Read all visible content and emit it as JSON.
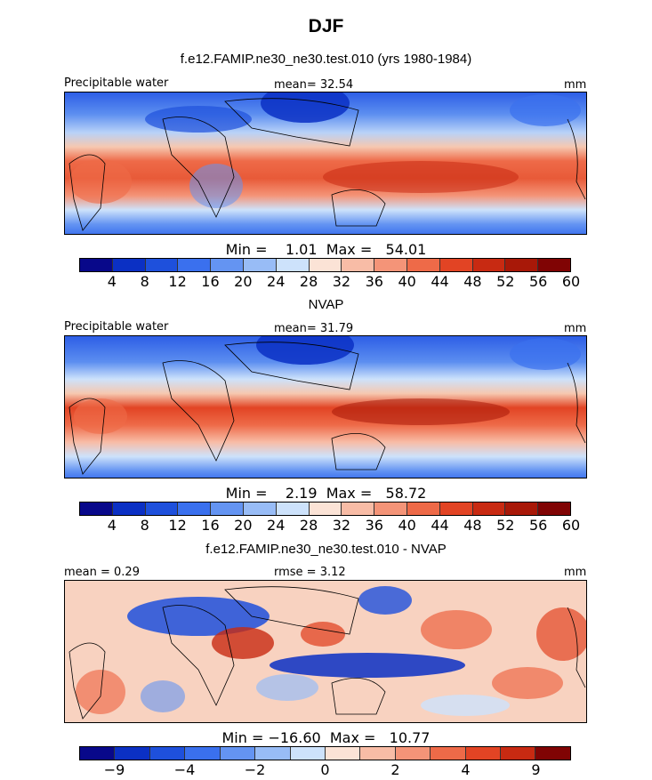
{
  "figure": {
    "title": "DJF",
    "subtitle": "f.e12.FAMIP.ne30_ne30.test.010 (yrs 1980-1984)"
  },
  "panels": [
    {
      "left_label": "Precipitable water",
      "center_label": "mean=  32.54",
      "right_label": "mm",
      "minmax": "Min =    1.01  Max =   54.01",
      "section_title": ""
    },
    {
      "left_label": "Precipitable water",
      "center_label": "mean=  31.79",
      "right_label": "mm",
      "minmax": "Min =    2.19  Max =   58.72",
      "section_title": "NVAP"
    },
    {
      "left_label": "mean =    0.29",
      "center_label": "rmse =    3.12",
      "right_label": "mm",
      "minmax": "Min = −16.60  Max =   10.77",
      "section_title": "f.e12.FAMIP.ne30_ne30.test.010 - NVAP"
    }
  ],
  "colorbar_abs": {
    "colors": [
      "#08088a",
      "#0b30c4",
      "#1e50dc",
      "#3a70ee",
      "#6494f2",
      "#98bcf6",
      "#cde2fb",
      "#fbe3d6",
      "#f8bca6",
      "#f49478",
      "#ee6a48",
      "#e24424",
      "#c82a12",
      "#a81808",
      "#800404"
    ],
    "labels": [
      "4",
      "8",
      "12",
      "16",
      "20",
      "24",
      "28",
      "32",
      "36",
      "40",
      "44",
      "48",
      "52",
      "56",
      "60"
    ]
  },
  "colorbar_diff": {
    "colors": [
      "#08088a",
      "#0b30c4",
      "#1e50dc",
      "#3a70ee",
      "#6494f2",
      "#98bcf6",
      "#cde2fb",
      "#fbe3d6",
      "#f8bca6",
      "#f49478",
      "#ee6a48",
      "#e24424",
      "#c82a12",
      "#800404"
    ],
    "labels": [
      "−9",
      "−4",
      "−2",
      "0",
      "2",
      "4",
      "9"
    ]
  }
}
